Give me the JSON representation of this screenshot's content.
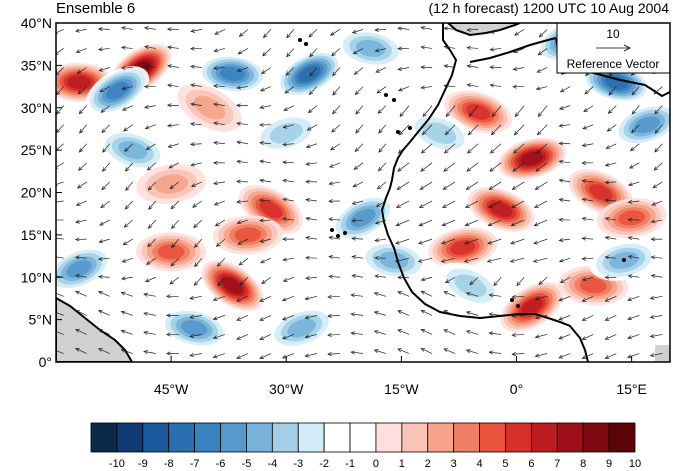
{
  "title_left": "Ensemble 6",
  "title_right": "(12 h forecast) 1200 UTC 10 Aug 2004",
  "lat_labels": [
    "40°N",
    "35°N",
    "30°N",
    "25°N",
    "20°N",
    "15°N",
    "10°N",
    "5°N",
    "0°"
  ],
  "lon_labels": [
    "45°W",
    "30°W",
    "15°W",
    "0°",
    "15°E"
  ],
  "reference_vector": {
    "value": "10",
    "label": "Reference Vector"
  },
  "colorbar": {
    "labels": [
      "-10",
      "-9",
      "-8",
      "-7",
      "-6",
      "-5",
      "-4",
      "-3",
      "-2",
      "-1",
      "0",
      "1",
      "2",
      "3",
      "4",
      "5",
      "6",
      "7",
      "8",
      "9",
      "10"
    ],
    "colors": [
      "#0b2a4a",
      "#0f3a73",
      "#1a5a9c",
      "#2a6fb1",
      "#3b82c0",
      "#5799cc",
      "#7ab3da",
      "#a3d0e6",
      "#d2ecf7",
      "#ffffff",
      "#ffffff",
      "#fde0dd",
      "#f9c4b5",
      "#f6a38a",
      "#f07e62",
      "#e9523d",
      "#d6302a",
      "#bd1c22",
      "#9d101a",
      "#7f0a13",
      "#5c0508"
    ]
  },
  "map": {
    "lat_range": [
      0,
      40
    ],
    "lon_range": [
      -60,
      20
    ],
    "anomalies": [
      {
        "lon": -49,
        "lat": 34.5,
        "v": 9
      },
      {
        "lon": -57,
        "lat": 33,
        "v": 7
      },
      {
        "lon": -52,
        "lat": 32,
        "v": -6
      },
      {
        "lon": -37,
        "lat": 34,
        "v": -6
      },
      {
        "lon": -27,
        "lat": 34,
        "v": -7
      },
      {
        "lon": -19,
        "lat": 37,
        "v": -4
      },
      {
        "lon": 7,
        "lat": 38,
        "v": -6
      },
      {
        "lon": 13,
        "lat": 33,
        "v": -7
      },
      {
        "lon": 17,
        "lat": 28,
        "v": -5
      },
      {
        "lon": -5,
        "lat": 29.5,
        "v": 6
      },
      {
        "lon": 2,
        "lat": 24,
        "v": 8
      },
      {
        "lon": -2,
        "lat": 18,
        "v": 7
      },
      {
        "lon": -7,
        "lat": 13.5,
        "v": 6
      },
      {
        "lon": 11,
        "lat": 20,
        "v": 6
      },
      {
        "lon": 15,
        "lat": 17,
        "v": 5
      },
      {
        "lon": -32,
        "lat": 18,
        "v": 6
      },
      {
        "lon": -35,
        "lat": 15,
        "v": 5
      },
      {
        "lon": -37,
        "lat": 9,
        "v": 8
      },
      {
        "lon": -45,
        "lat": 13,
        "v": 5
      },
      {
        "lon": 2,
        "lat": 6.5,
        "v": 7
      },
      {
        "lon": 10,
        "lat": 9,
        "v": 5
      },
      {
        "lon": -20,
        "lat": 17,
        "v": -5
      },
      {
        "lon": -16,
        "lat": 12,
        "v": -4
      },
      {
        "lon": -57,
        "lat": 11,
        "v": -5
      },
      {
        "lon": -42,
        "lat": 4,
        "v": -5
      },
      {
        "lon": -28,
        "lat": 4,
        "v": -4
      },
      {
        "lon": -50,
        "lat": 25,
        "v": -4
      },
      {
        "lon": -30,
        "lat": 27,
        "v": -3
      },
      {
        "lon": -10,
        "lat": 27,
        "v": -3
      },
      {
        "lon": 14,
        "lat": 12,
        "v": -4
      },
      {
        "lon": -6,
        "lat": 9,
        "v": -3
      },
      {
        "lon": -45,
        "lat": 21,
        "v": 3
      },
      {
        "lon": -40,
        "lat": 30,
        "v": 3
      }
    ],
    "reference_vector_value": 10
  }
}
